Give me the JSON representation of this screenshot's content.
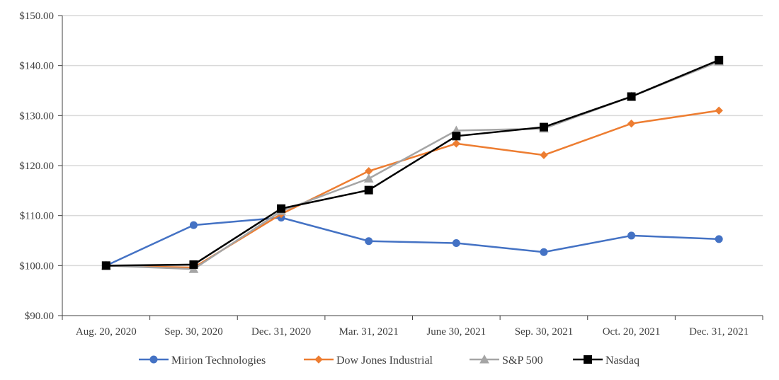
{
  "chart_data": {
    "type": "line",
    "title": "",
    "xlabel": "",
    "ylabel": "",
    "ylim": [
      90,
      150
    ],
    "yticks": [
      90,
      100,
      110,
      120,
      130,
      140,
      150
    ],
    "y_tick_labels": [
      "$90.00",
      "$100.00",
      "$110.00",
      "$120.00",
      "$130.00",
      "$140.00",
      "$150.00"
    ],
    "grid": true,
    "legend_position": "bottom",
    "categories": [
      "Aug. 20, 2020",
      "Sep. 30, 2020",
      "Dec. 31, 2020",
      "Mar. 31, 2021",
      "June 30, 2021",
      "Sep. 30, 2021",
      "Oct. 20, 2021",
      "Dec. 31, 2021"
    ],
    "series": [
      {
        "name": "Mirion Technologies",
        "color": "#4472C4",
        "marker": "circle",
        "values": [
          100.0,
          108.1,
          109.6,
          104.9,
          104.5,
          102.7,
          106.0,
          105.3
        ]
      },
      {
        "name": "Dow Jones Industrial",
        "color": "#ED7D31",
        "marker": "diamond",
        "values": [
          100.0,
          99.6,
          110.3,
          118.9,
          124.4,
          122.1,
          128.4,
          131.0
        ]
      },
      {
        "name": "S&P 500",
        "color": "#A5A5A5",
        "marker": "triangle",
        "values": [
          100.0,
          99.3,
          110.9,
          117.4,
          127.0,
          127.4,
          133.8,
          140.8
        ]
      },
      {
        "name": "Nasdaq",
        "color": "#000000",
        "marker": "square",
        "values": [
          100.0,
          100.2,
          111.4,
          115.1,
          125.9,
          127.7,
          133.8,
          141.1
        ]
      }
    ]
  }
}
